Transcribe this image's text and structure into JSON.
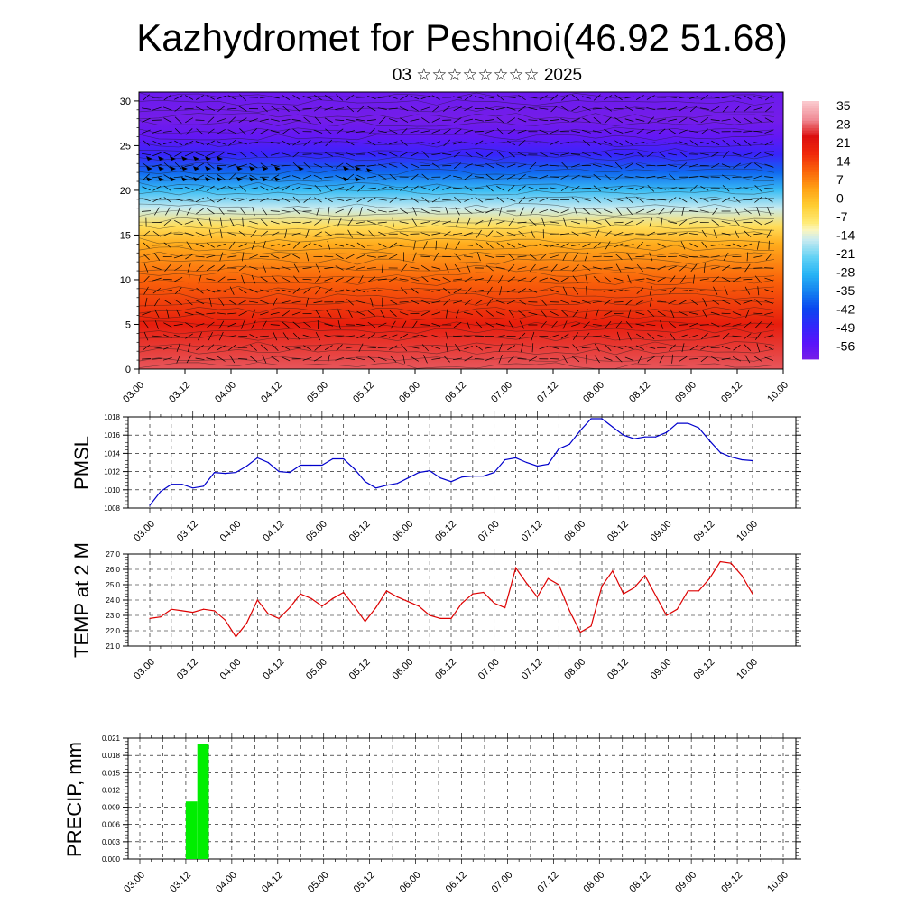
{
  "title": "Kazhydromet for Peshnoi(46.92 51.68)",
  "subtitle": "03 ☆☆☆☆☆☆☆☆ 2025",
  "chart_data": [
    {
      "type": "heatmap",
      "name": "temperature-cross-section",
      "ylim": [
        0,
        31
      ],
      "yticks": [
        "0",
        "5",
        "10",
        "15",
        "20",
        "25",
        "30"
      ],
      "xticks": [
        "03.00",
        "03.12",
        "04.00",
        "04.12",
        "05.00",
        "05.12",
        "06.00",
        "06.12",
        "07.00",
        "07.12",
        "08.00",
        "08.12",
        "09.00",
        "09.12",
        "10.00"
      ],
      "colorbar": {
        "labels": [
          "35",
          "28",
          "21",
          "14",
          "7",
          "0",
          "-7",
          "-14",
          "-21",
          "-28",
          "-35",
          "-42",
          "-49",
          "-56"
        ],
        "range": [
          -63,
          42
        ]
      },
      "profile": {
        "heights": [
          0,
          5,
          10,
          14,
          16,
          18,
          20,
          22,
          24,
          26,
          28,
          31
        ],
        "values": [
          32,
          24,
          14,
          5,
          -4,
          -14,
          -26,
          -38,
          -50,
          -58,
          -62,
          -60
        ]
      }
    },
    {
      "type": "line",
      "name": "pmsl",
      "ylabel": "PMSL",
      "ylim": [
        1008,
        1018
      ],
      "yticks": [
        "1008",
        "1010",
        "1012",
        "1014",
        "1016",
        "1018"
      ],
      "xticks": [
        "03.00",
        "03.12",
        "04.00",
        "04.12",
        "05.00",
        "05.12",
        "06.00",
        "06.12",
        "07.00",
        "07.12",
        "08.00",
        "08.12",
        "09.00",
        "09.12",
        "10.00"
      ],
      "x": [
        0,
        3,
        6,
        9,
        12,
        15,
        18,
        21,
        24,
        27,
        30,
        33,
        36,
        39,
        42,
        45,
        48,
        51,
        54,
        57,
        60,
        63,
        66,
        69,
        72,
        75,
        78,
        81,
        84,
        87,
        90,
        93,
        96,
        99,
        102,
        105,
        108,
        111,
        114,
        117,
        120,
        123,
        126,
        129,
        132,
        135,
        138,
        141,
        144,
        147,
        150,
        153,
        156,
        159,
        162,
        165,
        168
      ],
      "values": [
        1008.3,
        1009.8,
        1010.6,
        1010.6,
        1010.2,
        1010.4,
        1011.9,
        1011.8,
        1011.9,
        1012.6,
        1013.5,
        1013.0,
        1012.0,
        1011.9,
        1012.7,
        1012.7,
        1012.7,
        1013.4,
        1013.4,
        1012.3,
        1010.9,
        1010.2,
        1010.5,
        1010.7,
        1011.3,
        1011.9,
        1012.1,
        1011.3,
        1010.9,
        1011.4,
        1011.5,
        1011.5,
        1011.9,
        1013.3,
        1013.5,
        1013.0,
        1012.6,
        1012.8,
        1014.5,
        1015.0,
        1016.5,
        1017.8,
        1017.8,
        1016.9,
        1016.0,
        1015.6,
        1015.8,
        1015.8,
        1016.3,
        1017.3,
        1017.3,
        1016.8,
        1015.4,
        1014.1,
        1013.6,
        1013.3,
        1013.2
      ],
      "color": "#0000cc"
    },
    {
      "type": "line",
      "name": "temp2m",
      "ylabel": "TEMP at 2 M",
      "ylim": [
        21.0,
        27.0
      ],
      "yticks": [
        "21.0",
        "22.0",
        "23.0",
        "24.0",
        "25.0",
        "26.0",
        "27.0"
      ],
      "xticks": [
        "03.00",
        "03.12",
        "04.00",
        "04.12",
        "05.00",
        "05.12",
        "06.00",
        "06.12",
        "07.00",
        "07.12",
        "08.00",
        "08.12",
        "09.00",
        "09.12",
        "10.00"
      ],
      "x": [
        0,
        3,
        6,
        9,
        12,
        15,
        18,
        21,
        24,
        27,
        30,
        33,
        36,
        39,
        42,
        45,
        48,
        51,
        54,
        57,
        60,
        63,
        66,
        69,
        72,
        75,
        78,
        81,
        84,
        87,
        90,
        93,
        96,
        99,
        102,
        105,
        108,
        111,
        114,
        117,
        120,
        123,
        126,
        129,
        132,
        135,
        138,
        141,
        144,
        147,
        150,
        153,
        156,
        159,
        162,
        165,
        168
      ],
      "values": [
        22.8,
        22.9,
        23.4,
        23.3,
        23.2,
        23.4,
        23.3,
        22.7,
        21.6,
        22.5,
        24.0,
        23.1,
        22.8,
        23.5,
        24.4,
        24.1,
        23.6,
        24.1,
        24.5,
        23.6,
        22.6,
        23.5,
        24.6,
        24.2,
        23.9,
        23.6,
        23.0,
        22.8,
        22.8,
        23.8,
        24.4,
        24.5,
        23.8,
        23.5,
        26.1,
        25.1,
        24.2,
        25.4,
        25.0,
        23.3,
        21.9,
        22.3,
        24.9,
        25.9,
        24.4,
        24.8,
        25.6,
        24.3,
        23.0,
        23.4,
        24.6,
        24.6,
        25.4,
        26.5,
        26.4,
        25.6,
        24.4
      ],
      "color": "#dd0000"
    },
    {
      "type": "bar",
      "name": "precip",
      "ylabel": "PRECIP, mm",
      "ylim": [
        0,
        0.021
      ],
      "yticks": [
        "0.000",
        "0.003",
        "0.006",
        "0.009",
        "0.012",
        "0.015",
        "0.018",
        "0.021"
      ],
      "xticks": [
        "03.00",
        "03.12",
        "04.00",
        "04.12",
        "05.00",
        "05.12",
        "06.00",
        "06.12",
        "07.00",
        "07.12",
        "08.00",
        "08.12",
        "09.00",
        "09.12",
        "10.00"
      ],
      "bars": [
        {
          "x_start": 12,
          "x_end": 15,
          "value": 0.01
        },
        {
          "x_start": 15,
          "x_end": 18,
          "value": 0.02
        }
      ],
      "color": "#00ee00"
    }
  ]
}
